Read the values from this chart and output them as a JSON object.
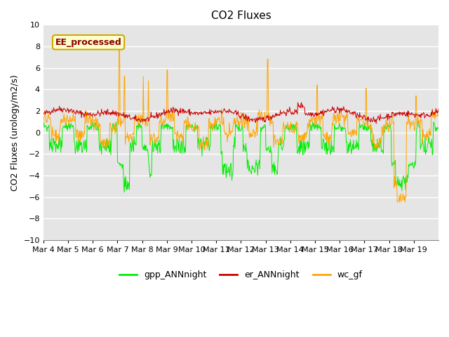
{
  "title": "CO2 Fluxes",
  "ylabel": "CO2 Fluxes (urology/m2/s)",
  "ylim": [
    -10,
    10
  ],
  "yticks": [
    -10,
    -8,
    -6,
    -4,
    -2,
    0,
    2,
    4,
    6,
    8,
    10
  ],
  "xtick_labels": [
    "Mar 4",
    "Mar 5",
    "Mar 6",
    "Mar 7",
    "Mar 8",
    "Mar 9",
    "Mar 10",
    "Mar 11",
    "Mar 12",
    "Mar 13",
    "Mar 14",
    "Mar 15",
    "Mar 16",
    "Mar 17",
    "Mar 18",
    "Mar 19"
  ],
  "n_days": 16,
  "points_per_day": 48,
  "background_color": "#e5e5e5",
  "grid_color": "#ffffff",
  "gpp_color": "#00ee00",
  "er_color": "#cc0000",
  "wc_color": "#ffa500",
  "annotation_text": "EE_processed",
  "annotation_bg": "#ffffcc",
  "annotation_border": "#ccaa00",
  "annotation_text_color": "#880000",
  "legend_labels": [
    "gpp_ANNnight",
    "er_ANNnight",
    "wc_gf"
  ],
  "title_fontsize": 11,
  "axis_fontsize": 9,
  "tick_fontsize": 8,
  "legend_fontsize": 9
}
